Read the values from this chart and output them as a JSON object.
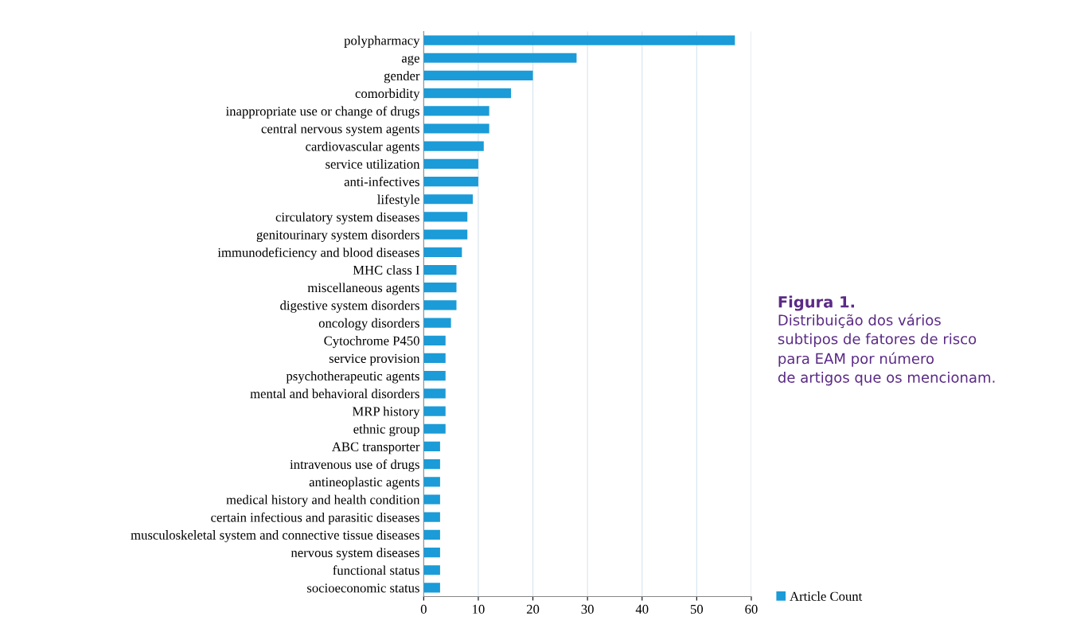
{
  "chart_data": {
    "type": "bar",
    "orientation": "horizontal",
    "categories": [
      "polypharmacy",
      "age",
      "gender",
      "comorbidity",
      "inappropriate use or change of drugs",
      "central nervous system agents",
      "cardiovascular agents",
      "service utilization",
      "anti-infectives",
      "lifestyle",
      "circulatory system diseases",
      "genitourinary system disorders",
      "immunodeficiency and blood diseases",
      "MHC class I",
      "miscellaneous agents",
      "digestive system disorders",
      "oncology disorders",
      "Cytochrome P450",
      "service provision",
      "psychotherapeutic agents",
      "mental and behavioral disorders",
      "MRP history",
      "ethnic group",
      "ABC transporter",
      "intravenous use of drugs",
      "antineoplastic agents",
      "medical history and health condition",
      "certain infectious and parasitic diseases",
      "musculoskeletal system and connective tissue diseases",
      "nervous system diseases",
      "functional status",
      "socioeconomic status"
    ],
    "series": [
      {
        "name": "Article Count",
        "color": "#1b9bd7",
        "values": [
          57,
          28,
          20,
          16,
          12,
          12,
          11,
          10,
          10,
          9,
          8,
          8,
          7,
          6,
          6,
          6,
          5,
          4,
          4,
          4,
          4,
          4,
          4,
          3,
          3,
          3,
          3,
          3,
          3,
          3,
          3,
          3
        ]
      }
    ],
    "xlim": [
      0,
      60
    ],
    "xticks": [
      0,
      10,
      20,
      30,
      40,
      50,
      60
    ],
    "grid": "x",
    "legend": "bottom right",
    "annotations": [
      "Figura 1.",
      "Distribuição dos vários\nsubtipos de fatores de risco\npara EAM por número\nde artigos que os mencionam."
    ]
  }
}
